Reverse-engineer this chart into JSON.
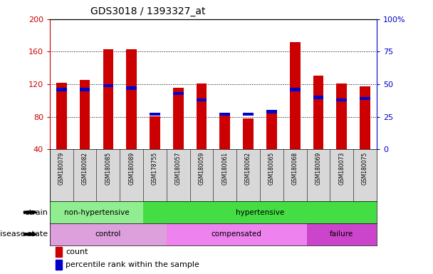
{
  "title": "GDS3018 / 1393327_at",
  "samples": [
    "GSM180079",
    "GSM180082",
    "GSM180085",
    "GSM180089",
    "GSM178755",
    "GSM180057",
    "GSM180059",
    "GSM180061",
    "GSM180062",
    "GSM180065",
    "GSM180068",
    "GSM180069",
    "GSM180073",
    "GSM180075"
  ],
  "count_values": [
    122,
    125,
    163,
    163,
    81,
    116,
    121,
    82,
    78,
    86,
    172,
    131,
    121,
    117
  ],
  "percentile_values": [
    46,
    46,
    49,
    47,
    27,
    43,
    38,
    27,
    27,
    29,
    46,
    40,
    38,
    39
  ],
  "ylim_left": [
    40,
    200
  ],
  "ylim_right": [
    0,
    100
  ],
  "yticks_left": [
    40,
    80,
    120,
    160,
    200
  ],
  "yticks_right": [
    0,
    25,
    50,
    75,
    100
  ],
  "bar_color": "#cc0000",
  "percentile_color": "#0000cc",
  "strain_groups": [
    {
      "label": "non-hypertensive",
      "start": 0,
      "end": 4,
      "color": "#90ee90"
    },
    {
      "label": "hypertensive",
      "start": 4,
      "end": 14,
      "color": "#44dd44"
    }
  ],
  "disease_groups": [
    {
      "label": "control",
      "start": 0,
      "end": 5,
      "color": "#dda0dd"
    },
    {
      "label": "compensated",
      "start": 5,
      "end": 11,
      "color": "#ee82ee"
    },
    {
      "label": "failure",
      "start": 11,
      "end": 14,
      "color": "#cc44cc"
    }
  ],
  "strain_label": "strain",
  "disease_label": "disease state",
  "legend_count": "count",
  "legend_percentile": "percentile rank within the sample",
  "tick_color_left": "#cc0000",
  "tick_color_right": "#0000cc",
  "bar_width": 0.45,
  "xticklabel_bg": "#d8d8d8",
  "plot_bg": "#ffffff",
  "fig_bg": "#ffffff"
}
